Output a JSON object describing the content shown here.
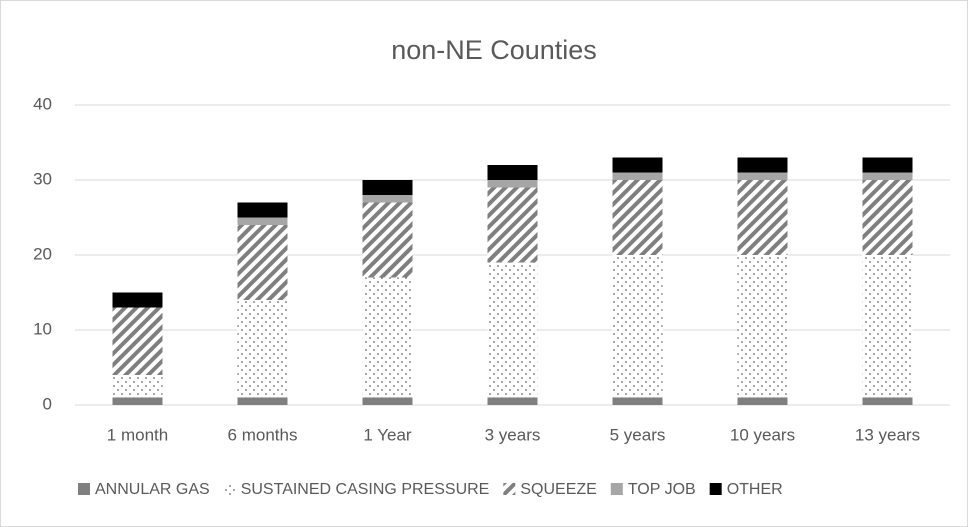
{
  "chart_data": {
    "type": "stacked_bar",
    "title": "non-NE Counties",
    "categories": [
      "1 month",
      "6 months",
      "1 Year",
      "3 years",
      "5 years",
      "10 years",
      "13 years"
    ],
    "series": [
      {
        "name": "ANNULAR GAS",
        "color": "#7f7f7f",
        "pattern": "solid",
        "values": [
          1,
          1,
          1,
          1,
          1,
          1,
          1
        ]
      },
      {
        "name": "SUSTAINED CASING PRESSURE",
        "color": "#404040",
        "pattern": "dots",
        "values": [
          3,
          13,
          16,
          18,
          19,
          19,
          19
        ]
      },
      {
        "name": "SQUEEZE",
        "color": "#7f7f7f",
        "pattern": "hatch",
        "values": [
          9,
          10,
          10,
          10,
          10,
          10,
          10
        ]
      },
      {
        "name": "TOP JOB",
        "color": "#a6a6a6",
        "pattern": "solid",
        "values": [
          0,
          1,
          1,
          1,
          1,
          1,
          1
        ]
      },
      {
        "name": "OTHER",
        "color": "#000000",
        "pattern": "solid",
        "values": [
          2,
          2,
          2,
          2,
          2,
          2,
          2
        ]
      }
    ],
    "ylim": [
      0,
      40
    ],
    "yticks": [
      0,
      10,
      20,
      30,
      40
    ],
    "grid": true,
    "legend": "bottom"
  }
}
